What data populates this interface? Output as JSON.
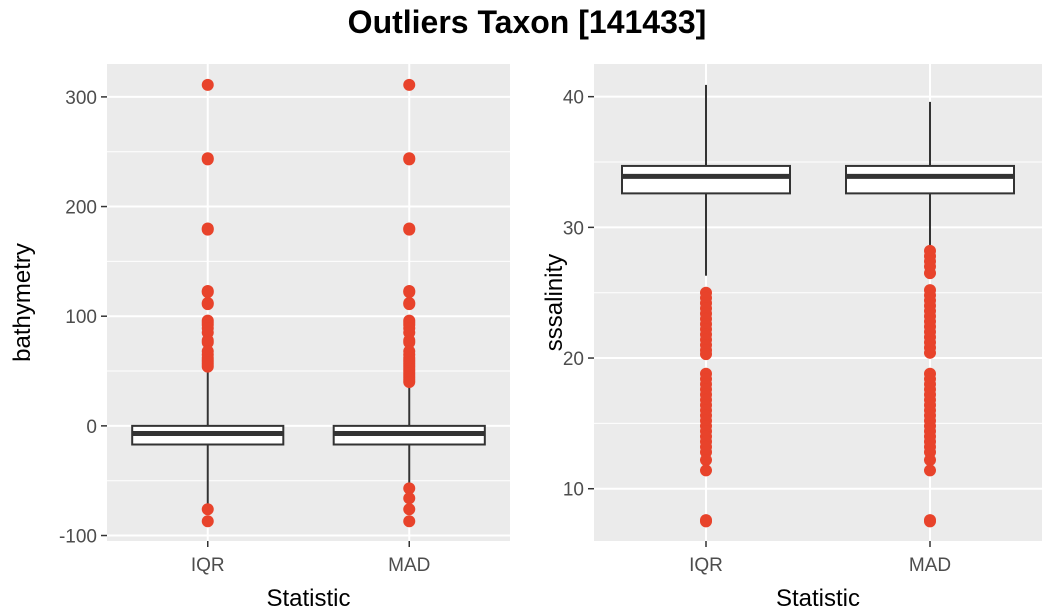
{
  "figure": {
    "title": "Outliers Taxon [141433]"
  },
  "colors": {
    "panel_background": "#ebebeb",
    "grid": "#ffffff",
    "box_stroke": "#333333",
    "outlier": "#e8432b",
    "tick_text": "#4d4d4d"
  },
  "chart_data": [
    {
      "type": "boxplot",
      "xlabel": "Statistic",
      "ylabel": "bathymetry",
      "categories": [
        "IQR",
        "MAD"
      ],
      "ylim": [
        -105,
        330
      ],
      "yticks": [
        -100,
        0,
        100,
        200,
        300
      ],
      "ytick_labels": [
        "-100",
        "0",
        "100",
        "200",
        "300"
      ],
      "grid": true,
      "boxes": [
        {
          "category": "IQR",
          "whisker_low": -73,
          "q1": -17,
          "median": -7,
          "q3": 0,
          "whisker_high": 51,
          "outliers": [
            311,
            244,
            243,
            180,
            179,
            123,
            122,
            112,
            111,
            96,
            94,
            92,
            89,
            85,
            78,
            76,
            68,
            65,
            62,
            60,
            58,
            56,
            54,
            -76,
            -87
          ]
        },
        {
          "category": "MAD",
          "whisker_low": -55,
          "q1": -17,
          "median": -7,
          "q3": 0,
          "whisker_high": 38,
          "outliers": [
            311,
            244,
            243,
            180,
            179,
            123,
            122,
            112,
            111,
            96,
            94,
            92,
            89,
            85,
            78,
            76,
            68,
            65,
            62,
            60,
            58,
            56,
            54,
            52,
            50,
            48,
            46,
            44,
            42,
            40,
            -57,
            -66,
            -76,
            -87
          ]
        }
      ]
    },
    {
      "type": "boxplot",
      "xlabel": "Statistic",
      "ylabel": "sssalinity",
      "categories": [
        "IQR",
        "MAD"
      ],
      "ylim": [
        6,
        42.5
      ],
      "yticks": [
        10,
        20,
        30,
        40
      ],
      "ytick_labels": [
        "10",
        "20",
        "30",
        "40"
      ],
      "grid": true,
      "boxes": [
        {
          "category": "IQR",
          "whisker_low": 26.3,
          "q1": 32.6,
          "median": 33.9,
          "q3": 34.7,
          "whisker_high": 40.9,
          "outliers": [
            25.0,
            24.6,
            24.2,
            23.8,
            23.4,
            23.0,
            22.6,
            22.2,
            21.8,
            21.4,
            21.0,
            20.6,
            20.3,
            18.8,
            18.4,
            18.0,
            17.6,
            17.2,
            16.8,
            16.4,
            16.0,
            15.6,
            15.2,
            14.8,
            14.4,
            14.0,
            13.6,
            13.2,
            12.8,
            12.2,
            11.4,
            7.6,
            7.5
          ]
        },
        {
          "category": "MAD",
          "whisker_low": 28.6,
          "q1": 32.6,
          "median": 33.9,
          "q3": 34.7,
          "whisker_high": 39.6,
          "outliers": [
            28.2,
            27.8,
            27.4,
            27.0,
            26.5,
            25.2,
            24.8,
            24.4,
            24.0,
            23.6,
            23.2,
            22.8,
            22.4,
            22.0,
            21.6,
            21.2,
            20.8,
            20.4,
            18.8,
            18.4,
            18.0,
            17.6,
            17.2,
            16.8,
            16.4,
            16.0,
            15.6,
            15.2,
            14.8,
            14.4,
            14.0,
            13.6,
            13.2,
            12.8,
            12.2,
            11.4,
            7.6,
            7.5
          ]
        }
      ]
    }
  ]
}
